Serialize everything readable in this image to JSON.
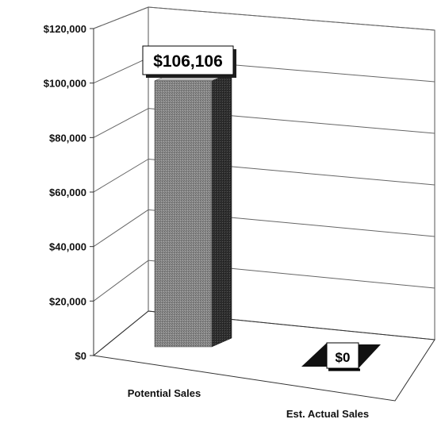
{
  "chart_data": {
    "type": "bar",
    "style": "3d-column",
    "categories": [
      "Potential Sales",
      "Est. Actual Sales"
    ],
    "values": [
      106106,
      0
    ],
    "data_labels": [
      "$106,106",
      "$0"
    ],
    "y_ticks": [
      0,
      20000,
      40000,
      60000,
      80000,
      100000,
      120000
    ],
    "y_tick_labels": [
      "$0",
      "$20,000",
      "$40,000",
      "$60,000",
      "$80,000",
      "$100,000",
      "$120,000"
    ],
    "ylim": [
      0,
      120000
    ],
    "title": "",
    "xlabel": "",
    "ylabel": "",
    "grid": true,
    "legend": "none",
    "colors": {
      "bar_front": "#8a8a8a",
      "bar_side": "#2e2e2e",
      "bar_top": "#bdbdbd",
      "grid": "#666666",
      "axis": "#333333"
    }
  }
}
